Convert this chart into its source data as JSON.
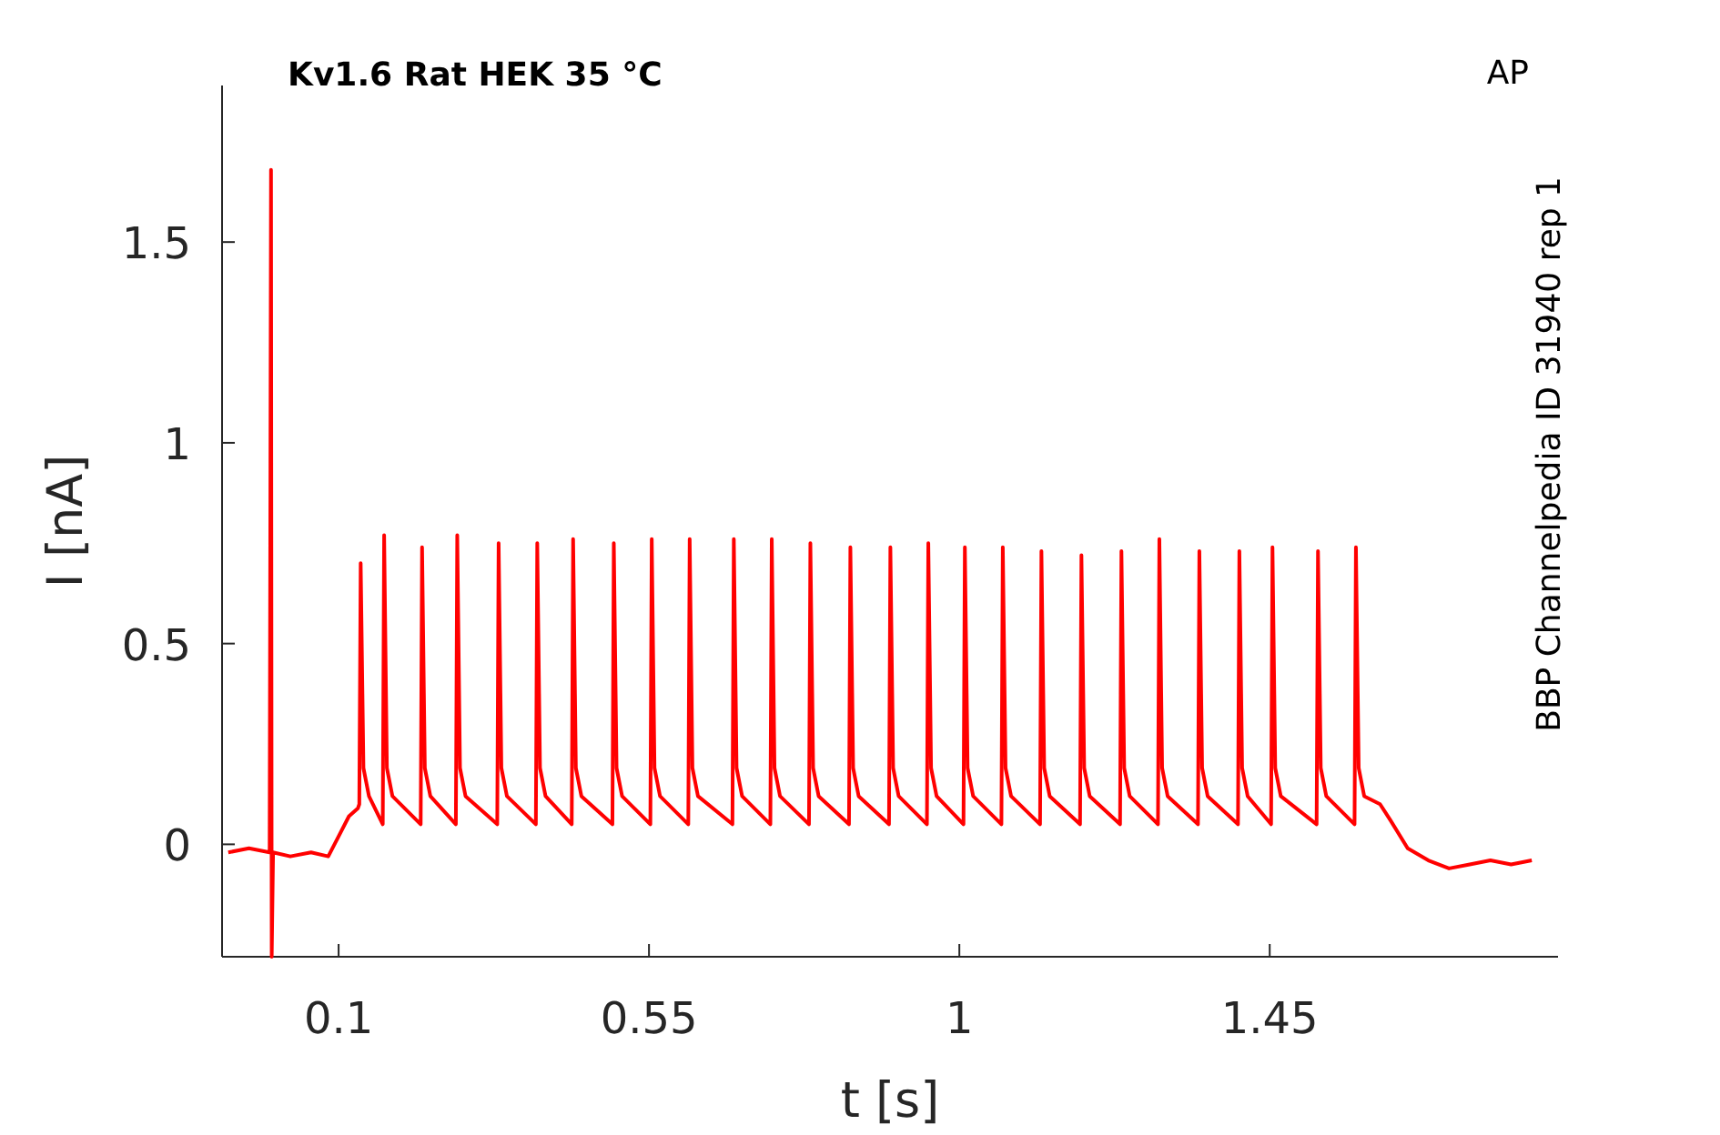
{
  "chart_data": {
    "type": "line",
    "title": "Kv1.6  Rat  HEK  35 °C",
    "xlabel": "t [s]",
    "ylabel": "I [nA]",
    "annotations": [
      "AP",
      "BBP Channelpedia ID 31940 rep 1"
    ],
    "xlim": [
      -0.069,
      1.868
    ],
    "ylim": [
      -0.28,
      1.89
    ],
    "xticks": [
      0.1,
      0.55,
      1,
      1.45
    ],
    "yticks": [
      0,
      0.5,
      1,
      1.5
    ],
    "grid": false,
    "series": [
      {
        "color": "#ff0000",
        "x": [
          -0.06,
          -0.03,
          0.0,
          0.002,
          0.003,
          0.005,
          0.03,
          0.06,
          0.085,
          0.1,
          0.115,
          0.128,
          0.13,
          0.132,
          0.136,
          0.144,
          0.164,
          0.166,
          0.17,
          0.178,
          0.219,
          0.221,
          0.225,
          0.233,
          0.27,
          0.272,
          0.276,
          0.284,
          0.33,
          0.332,
          0.336,
          0.344,
          0.386,
          0.388,
          0.392,
          0.4,
          0.438,
          0.44,
          0.444,
          0.452,
          0.497,
          0.499,
          0.503,
          0.511,
          0.552,
          0.554,
          0.558,
          0.566,
          0.607,
          0.609,
          0.613,
          0.621,
          0.671,
          0.673,
          0.677,
          0.685,
          0.726,
          0.728,
          0.732,
          0.74,
          0.782,
          0.784,
          0.788,
          0.796,
          0.84,
          0.842,
          0.846,
          0.854,
          0.898,
          0.9,
          0.904,
          0.912,
          0.953,
          0.955,
          0.959,
          0.967,
          1.006,
          1.008,
          1.012,
          1.02,
          1.061,
          1.063,
          1.067,
          1.075,
          1.117,
          1.119,
          1.123,
          1.131,
          1.175,
          1.177,
          1.181,
          1.189,
          1.233,
          1.235,
          1.239,
          1.247,
          1.288,
          1.29,
          1.294,
          1.302,
          1.346,
          1.348,
          1.352,
          1.36,
          1.404,
          1.406,
          1.41,
          1.418,
          1.452,
          1.454,
          1.458,
          1.466,
          1.518,
          1.52,
          1.524,
          1.532,
          1.573,
          1.575,
          1.579,
          1.587,
          1.61,
          1.625,
          1.65,
          1.68,
          1.71,
          1.74,
          1.77,
          1.8,
          1.83
        ],
        "values": [
          -0.02,
          -0.01,
          -0.02,
          1.68,
          -0.28,
          -0.02,
          -0.03,
          -0.02,
          -0.03,
          0.02,
          0.07,
          0.09,
          0.1,
          0.7,
          0.19,
          0.12,
          0.05,
          0.77,
          0.19,
          0.12,
          0.05,
          0.74,
          0.19,
          0.12,
          0.05,
          0.77,
          0.19,
          0.12,
          0.05,
          0.75,
          0.19,
          0.12,
          0.05,
          0.75,
          0.19,
          0.12,
          0.05,
          0.76,
          0.19,
          0.12,
          0.05,
          0.75,
          0.19,
          0.12,
          0.05,
          0.76,
          0.19,
          0.12,
          0.05,
          0.76,
          0.19,
          0.12,
          0.05,
          0.76,
          0.19,
          0.12,
          0.05,
          0.76,
          0.19,
          0.12,
          0.05,
          0.75,
          0.19,
          0.12,
          0.05,
          0.74,
          0.19,
          0.12,
          0.05,
          0.74,
          0.19,
          0.12,
          0.05,
          0.75,
          0.19,
          0.12,
          0.05,
          0.74,
          0.19,
          0.12,
          0.05,
          0.74,
          0.19,
          0.12,
          0.05,
          0.73,
          0.19,
          0.12,
          0.05,
          0.72,
          0.19,
          0.12,
          0.05,
          0.73,
          0.19,
          0.12,
          0.05,
          0.76,
          0.19,
          0.12,
          0.05,
          0.73,
          0.19,
          0.12,
          0.05,
          0.73,
          0.19,
          0.12,
          0.05,
          0.74,
          0.19,
          0.12,
          0.05,
          0.73,
          0.19,
          0.12,
          0.05,
          0.74,
          0.19,
          0.12,
          0.1,
          0.06,
          -0.01,
          -0.04,
          -0.06,
          -0.05,
          -0.04,
          -0.05,
          -0.04
        ]
      }
    ]
  }
}
